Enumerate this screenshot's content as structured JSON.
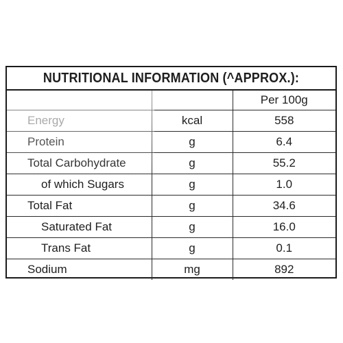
{
  "label": {
    "title": "NUTRITIONAL INFORMATION (^APPROX.):",
    "header": {
      "nutrient": "",
      "unit": "",
      "value": "Per 100g"
    },
    "rows": [
      {
        "nutrient": "Energy",
        "unit": "kcal",
        "value": "558"
      },
      {
        "nutrient": "Protein",
        "unit": "g",
        "value": "6.4"
      },
      {
        "nutrient": "Total Carbohydrate",
        "unit": "g",
        "value": "55.2"
      },
      {
        "nutrient": "of which Sugars",
        "unit": "g",
        "value": "1.0"
      },
      {
        "nutrient": "Total Fat",
        "unit": "g",
        "value": "34.6"
      },
      {
        "nutrient": "Saturated Fat",
        "unit": "g",
        "value": "16.0"
      },
      {
        "nutrient": "Trans Fat",
        "unit": "g",
        "value": "0.1"
      },
      {
        "nutrient": "Sodium",
        "unit": "mg",
        "value": "892"
      }
    ]
  }
}
